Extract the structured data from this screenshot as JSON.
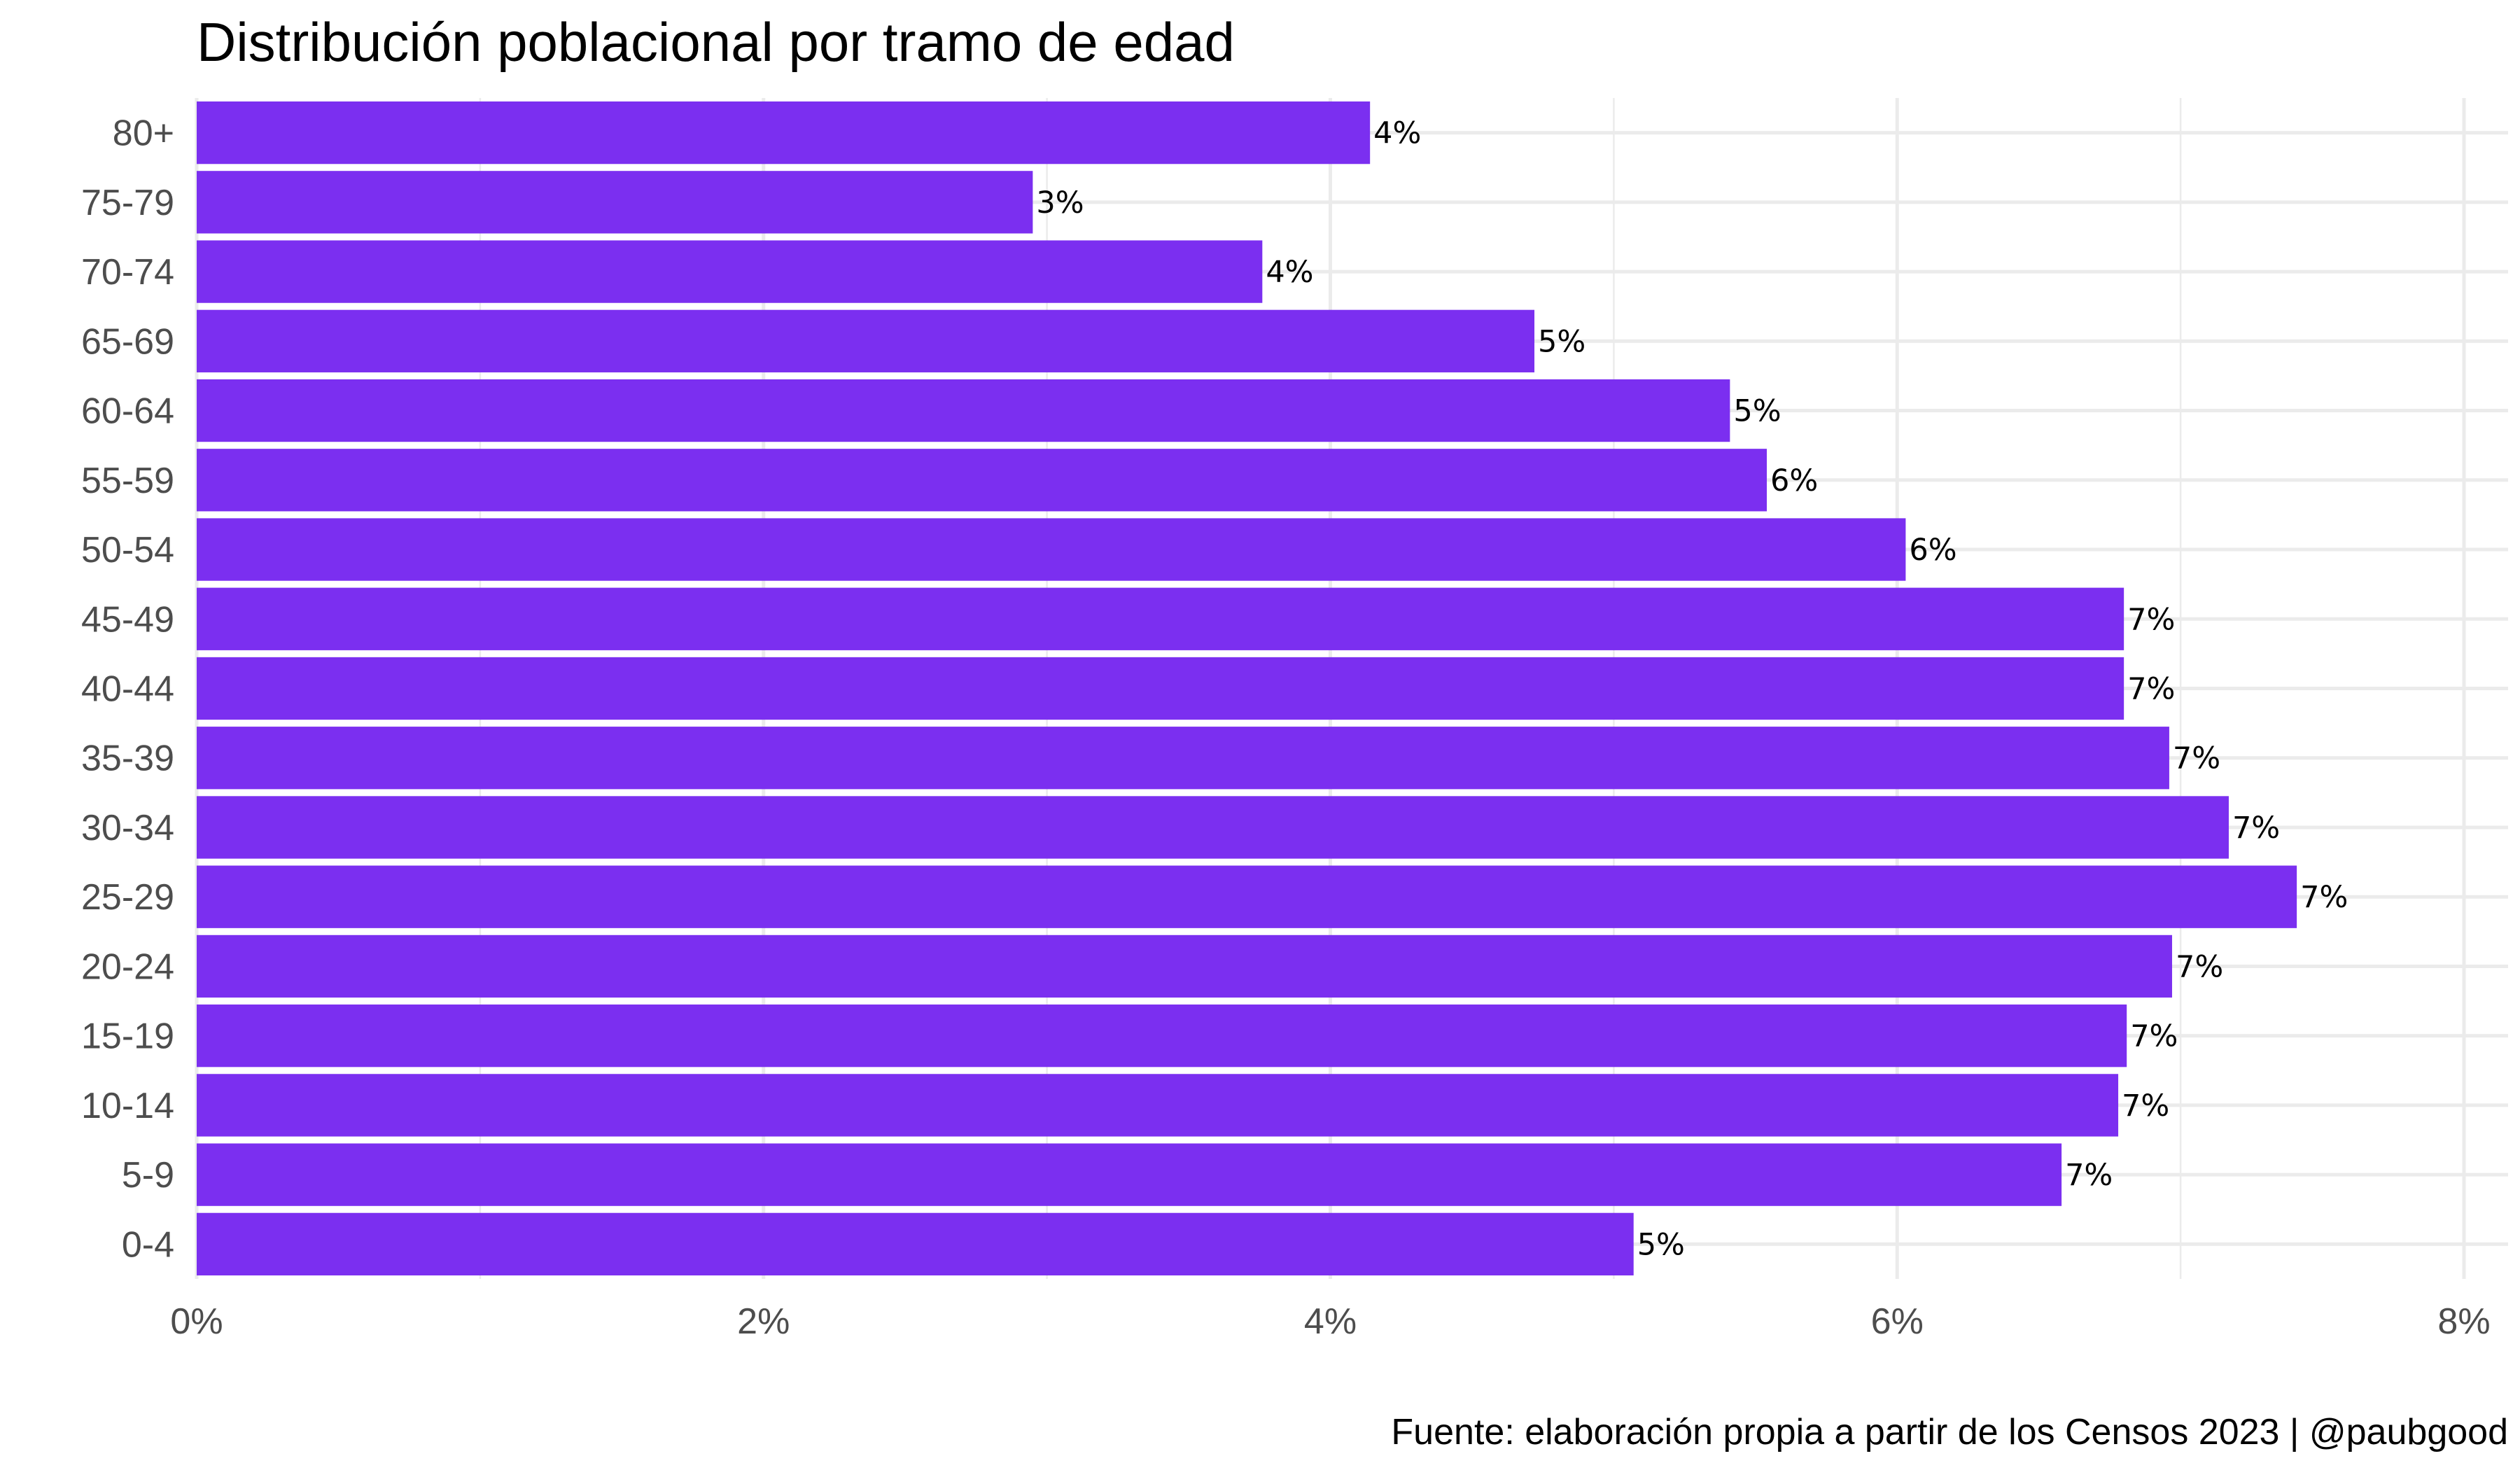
{
  "chart_data": {
    "type": "bar",
    "orientation": "horizontal",
    "title": "Distribución poblacional por tramo de edad",
    "caption": "Fuente: elaboración propia a partir de los Censos 2023 | @paubgood",
    "xlabel": "",
    "ylabel": "",
    "bar_color": "#7b2ff0",
    "grid": true,
    "xlim": [
      0,
      0.08
    ],
    "x_ticks": [
      0,
      0.02,
      0.04,
      0.06,
      0.08
    ],
    "x_tick_labels": [
      "0%",
      "2%",
      "4%",
      "6%",
      "8%"
    ],
    "categories": [
      "0-4",
      "5-9",
      "10-14",
      "15-19",
      "20-24",
      "25-29",
      "30-34",
      "35-39",
      "40-44",
      "45-49",
      "50-54",
      "55-59",
      "60-64",
      "65-69",
      "70-74",
      "75-79",
      "80+"
    ],
    "values": [
      0.0507,
      0.0658,
      0.0678,
      0.0681,
      0.0697,
      0.0741,
      0.0717,
      0.0696,
      0.068,
      0.068,
      0.0603,
      0.0554,
      0.0541,
      0.0472,
      0.0376,
      0.0295,
      0.0414
    ],
    "value_labels": [
      "5%",
      "7%",
      "7%",
      "7%",
      "7%",
      "7%",
      "7%",
      "7%",
      "7%",
      "7%",
      "6%",
      "6%",
      "5%",
      "5%",
      "4%",
      "3%",
      "4%"
    ]
  }
}
